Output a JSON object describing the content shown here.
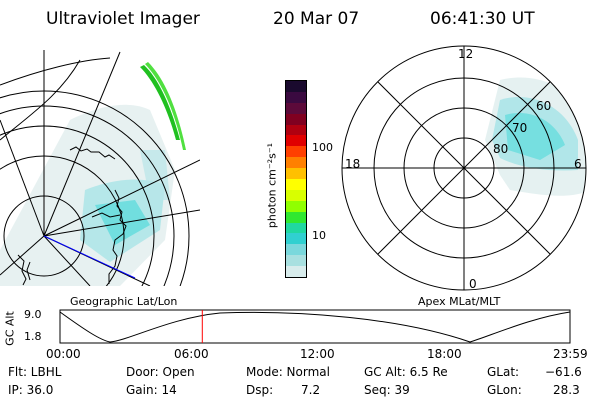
{
  "header": {
    "title": "Ultraviolet Imager",
    "date": "20 Mar 07",
    "time": "06:41:30 UT"
  },
  "colorbar": {
    "unit_label": "photon cm⁻²s⁻¹",
    "ticks": [
      "100",
      "10"
    ],
    "colors": [
      "#1a0a2e",
      "#3a0a40",
      "#5c0a3a",
      "#800020",
      "#b00010",
      "#e00000",
      "#ff4000",
      "#ff8000",
      "#ffc000",
      "#ffff00",
      "#d8ff00",
      "#90ff00",
      "#30e830",
      "#20d8a0",
      "#30d0d0",
      "#7ad8dc",
      "#a8e0e0",
      "#d8ecec"
    ]
  },
  "polar": {
    "mlt_labels": {
      "top": "12",
      "left": "18",
      "right": "6",
      "bottom": "0"
    },
    "lat_labels": [
      "60",
      "70",
      "80"
    ]
  },
  "timeline": {
    "left_label": "Geographic Lat/Lon",
    "right_label": "Apex MLat/MLT",
    "axis_label": "GC Alt",
    "y_ticks": [
      "9.0",
      "1.8"
    ],
    "x_ticks": [
      "00:00",
      "06:00",
      "12:00",
      "18:00",
      "23:59"
    ],
    "current_time_fraction": 0.279
  },
  "status": {
    "filter": "Flt: LBHL",
    "ip": "IP: 36.0",
    "door": "Door: Open",
    "gain": "Gain: 14",
    "mode": "Mode: Normal",
    "dsp_label": "Dsp:",
    "dsp_value": "7.2",
    "gc_alt": "GC Alt: 6.5 Re",
    "seq": "Seq: 39",
    "glat_label": "GLat:",
    "glat_value": "−61.6",
    "glon_label": "GLon:",
    "glon_value": "28.3"
  }
}
